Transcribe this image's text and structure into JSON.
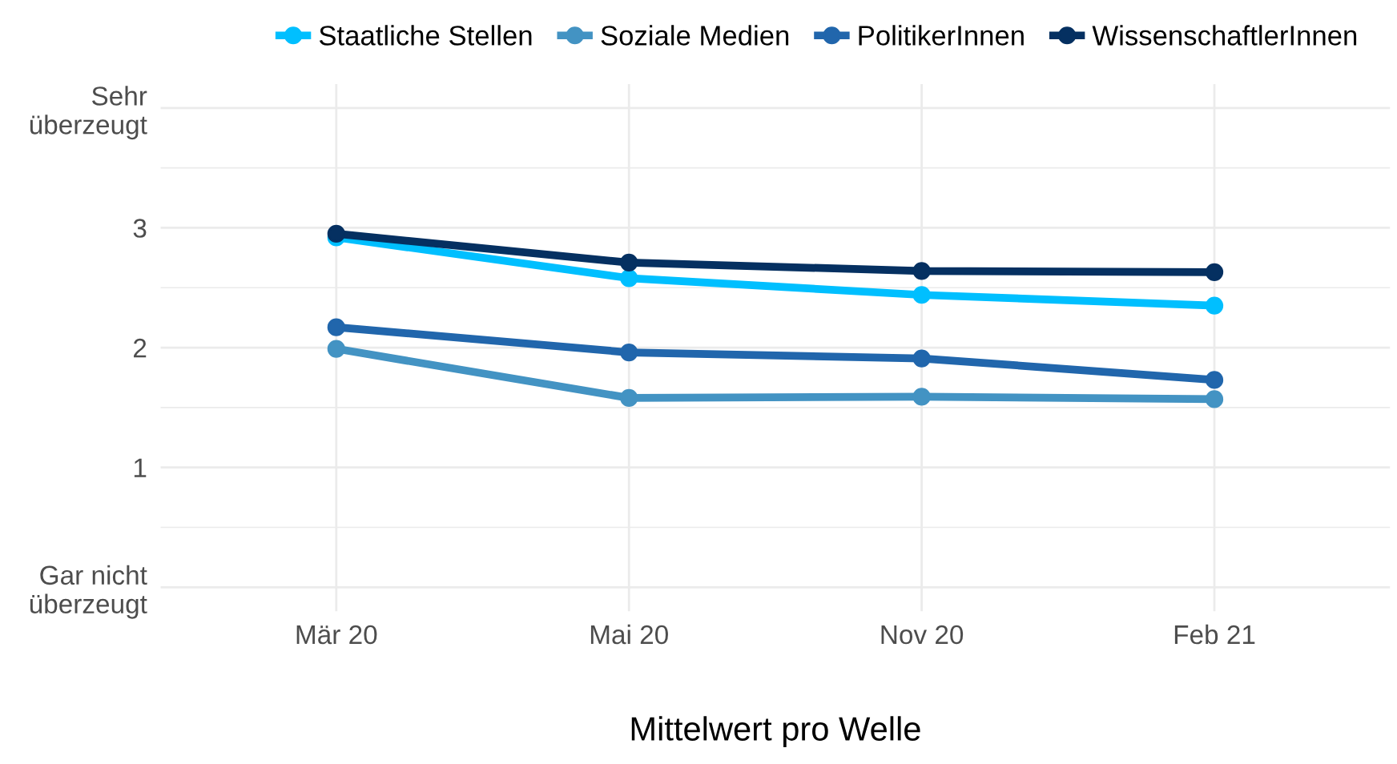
{
  "chart_data": {
    "type": "line",
    "xlabel": "Mittelwert pro Welle",
    "categories": [
      "Mär 20",
      "Mai 20",
      "Nov 20",
      "Feb 21"
    ],
    "series": [
      {
        "name": "Staatliche Stellen",
        "color": "#00bfff",
        "values": [
          2.92,
          2.58,
          2.44,
          2.35
        ]
      },
      {
        "name": "Soziale Medien",
        "color": "#4393c3",
        "values": [
          1.99,
          1.58,
          1.59,
          1.57
        ]
      },
      {
        "name": "PolitikerInnen",
        "color": "#2166ac",
        "values": [
          2.17,
          1.96,
          1.91,
          1.73
        ]
      },
      {
        "name": "WissenschaftlerInnen",
        "color": "#053061",
        "values": [
          2.95,
          2.71,
          2.64,
          2.63
        ]
      }
    ],
    "ylim": [
      -0.2,
      4.2
    ],
    "yticks": [
      {
        "value": 0,
        "label": "Gar nicht\nüberzeugt"
      },
      1,
      2,
      3,
      {
        "value": 4,
        "label": "Sehr\nüberzeugt"
      }
    ],
    "grid": true,
    "legend": "top",
    "marker": "circle",
    "line_style": "solid"
  }
}
